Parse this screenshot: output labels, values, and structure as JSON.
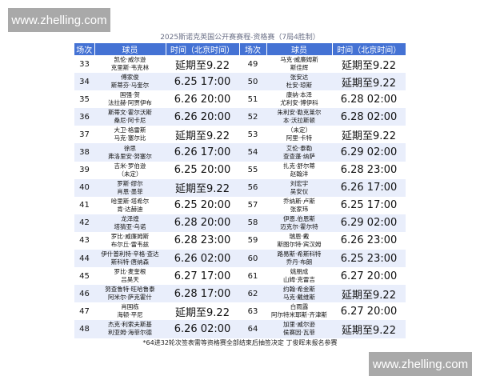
{
  "watermark": "www.zhelling.com",
  "title": "2025斯诺克英国公开赛赛程-资格赛（7局4胜制）",
  "headers": [
    "场次",
    "球员",
    "时间（北京时间）",
    "场次",
    "球员",
    "时间（北京时间）"
  ],
  "rows": [
    {
      "left": {
        "no": "33",
        "p1": "凯伦·威尔逊",
        "p2": "克里斯·韦克林",
        "time": "延期至9.22"
      },
      "right": {
        "no": "49",
        "p1": "马克·威廉姆斯",
        "p2": "斯佳辉",
        "time": "延期至9.22"
      }
    },
    {
      "left": {
        "no": "34",
        "p1": "傅家俊",
        "p2": "斯蒂芬·马奎尔",
        "time": "6.25 17:00"
      },
      "right": {
        "no": "50",
        "p1": "张安达",
        "p2": "杜安·琼斯",
        "time": "延期至9.22"
      }
    },
    {
      "left": {
        "no": "35",
        "p1": "国强·贺",
        "p2": "法拉赫·阿贾伊布",
        "time": "6.26 20:00"
      },
      "right": {
        "no": "51",
        "p1": "康纳·本泽",
        "p2": "尤利安·博伊科",
        "time": "6.28 02:00"
      }
    },
    {
      "left": {
        "no": "36",
        "p1": "斯蒂文·霍尔沃斯",
        "p2": "桑尼·阿卡尼",
        "time": "6.26 20:00"
      },
      "right": {
        "no": "52",
        "p1": "朱利安·勒克莱尔",
        "p2": "本·沃拉斯顿",
        "time": "6.28 02:00"
      }
    },
    {
      "left": {
        "no": "37",
        "p1": "大卫·格雷斯",
        "p2": "马克·塞尔比",
        "time": "延期至9.22"
      },
      "right": {
        "no": "53",
        "p1": "（未定）",
        "p2": "阿里·卡特",
        "time": "延期至9.22"
      }
    },
    {
      "left": {
        "no": "38",
        "p1": "徐思",
        "p2": "弗洛里安·努塞尔",
        "time": "6.26 17:00"
      },
      "right": {
        "no": "54",
        "p1": "艾伦·泰勒",
        "p2": "查查蓬·纳萨",
        "time": "6.29 02:00"
      }
    },
    {
      "left": {
        "no": "39",
        "p1": "吉米·罗伯逊",
        "p2": "（未定）",
        "time": "6.25 20:00"
      },
      "right": {
        "no": "55",
        "p1": "扎克·舒尔蒂",
        "p2": "赵翰洋",
        "time": "6.28 23:00"
      }
    },
    {
      "left": {
        "no": "40",
        "p1": "罗斯·缪尔",
        "p2": "肖恩·墨菲",
        "time": "延期至9.22"
      },
      "right": {
        "no": "56",
        "p1": "刘宏宇",
        "p2": "吴安仪",
        "time": "6.26 17:00"
      }
    },
    {
      "left": {
        "no": "41",
        "p1": "哈里斯·塔希尔",
        "p2": "肯·达赫迪",
        "time": "6.25 20:00"
      },
      "right": {
        "no": "57",
        "p1": "乔纳斯·卢斯",
        "p2": "张家玮",
        "time": "6.25 17:00"
      }
    },
    {
      "left": {
        "no": "42",
        "p1": "龙泽煌",
        "p2": "塔猜亚·乌诺",
        "time": "6.28 20:00"
      },
      "right": {
        "no": "58",
        "p1": "伊恩.伯恩斯",
        "p2": "迈克尔·霍尔特",
        "time": "6.29 02:00"
      }
    },
    {
      "left": {
        "no": "43",
        "p1": "罗比·威廉姆斯",
        "p2": "布尔丘·雷韦兹",
        "time": "6.28 23:00"
      },
      "right": {
        "no": "59",
        "p1": "瑞恩·戴",
        "p2": "斯图尔特·宾汉姆",
        "time": "6.26 23:00"
      }
    },
    {
      "left": {
        "no": "44",
        "p1": "伊什普利特·辛格·查达",
        "p2": "斯科特·唐纳森",
        "time": "6.26 02:00"
      },
      "right": {
        "no": "60",
        "p1": "路易斯·希斯科特",
        "p2": "乔丹·布朗",
        "time": "6.25 23:00"
      }
    },
    {
      "left": {
        "no": "45",
        "p1": "罗比·麦奎根",
        "p2": "吕昊天",
        "time": "6.27 17:00"
      },
      "right": {
        "no": "61",
        "p1": "姚朋成",
        "p2": "山姆·克雷吉",
        "time": "6.27 20:00"
      }
    },
    {
      "left": {
        "no": "46",
        "p1": "努查鲁特·旺哈鲁泰",
        "p2": "阿米尔·萨克霍什",
        "time": "6.28 17:00"
      },
      "right": {
        "no": "62",
        "p1": "约翰·希金斯",
        "p2": "马克·戴维斯",
        "time": "延期至9.22"
      }
    },
    {
      "left": {
        "no": "47",
        "p1": "肖国栋",
        "p2": "海顿·平尼",
        "time": "延期至9.22"
      },
      "right": {
        "no": "63",
        "p1": "白雨露",
        "p2": "阿尔特米耶斯·齐津斯",
        "time": "6.27 20:00"
      }
    },
    {
      "left": {
        "no": "48",
        "p1": "杰克·利索夫斯基",
        "p2": "利亚姆·海菲尔德",
        "time": "6.26 02:00"
      },
      "right": {
        "no": "64",
        "p1": "加里·威尔逊",
        "p2": "侯赛因·瓦菲",
        "time": "延期至9.22"
      }
    }
  ],
  "footnote": "*64进32轮次签表需等资格赛全部结束后抽签决定 丁俊晖未报名参赛"
}
